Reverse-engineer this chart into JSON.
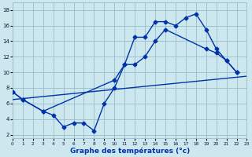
{
  "xlabel": "Graphe des températures (°c)",
  "bg_color": "#cce8ee",
  "grid_color": "#99bbcc",
  "line_color": "#0033aa",
  "xlim": [
    0,
    23
  ],
  "ylim": [
    1.5,
    19
  ],
  "xticks": [
    0,
    1,
    2,
    3,
    4,
    5,
    6,
    7,
    8,
    9,
    10,
    11,
    12,
    13,
    14,
    15,
    16,
    17,
    18,
    19,
    20,
    21,
    22,
    23
  ],
  "yticks": [
    2,
    4,
    6,
    8,
    10,
    12,
    14,
    16,
    18
  ],
  "curve1_x": [
    0,
    1,
    3,
    4,
    5,
    6,
    7,
    8,
    9,
    10,
    11,
    12,
    13,
    14,
    15,
    16,
    17,
    18,
    19,
    20,
    21,
    22
  ],
  "curve1_y": [
    7.5,
    6.5,
    5.0,
    4.5,
    3.0,
    3.5,
    3.5,
    2.5,
    6.0,
    8.0,
    11.0,
    14.5,
    14.5,
    16.5,
    16.5,
    16.0,
    17.0,
    17.5,
    15.5,
    13.0,
    11.5,
    10.0
  ],
  "curve2_x": [
    0,
    1,
    3,
    10,
    11,
    12,
    13,
    14,
    15,
    19,
    20,
    21,
    22
  ],
  "curve2_y": [
    7.5,
    6.5,
    5.0,
    9.0,
    11.0,
    11.0,
    12.0,
    14.0,
    15.5,
    13.0,
    12.5,
    11.5,
    10.0
  ],
  "curve3_x": [
    0,
    23
  ],
  "curve3_y": [
    6.5,
    9.5
  ],
  "marker": "D",
  "marker_size": 2.5,
  "linewidth": 1.0
}
